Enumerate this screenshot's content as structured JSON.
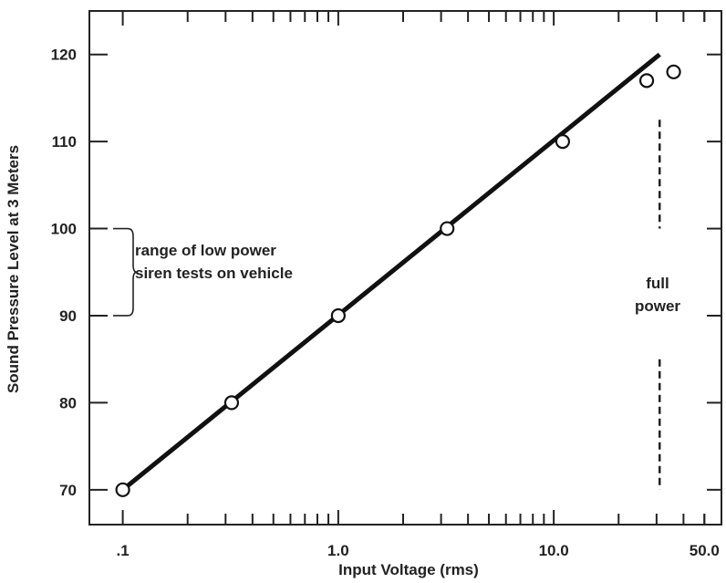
{
  "chart_data": {
    "type": "scatter",
    "xlabel": "Input Voltage (rms)",
    "ylabel": "Sound Pressure Level at 3 Meters",
    "x_scale": "log",
    "xlim": [
      0.07,
      60
    ],
    "ylim": [
      66,
      125
    ],
    "x_ticks": [
      {
        "value": 0.1,
        "label": ".1"
      },
      {
        "value": 1.0,
        "label": "1.0"
      },
      {
        "value": 10.0,
        "label": "10.0"
      },
      {
        "value": 50.0,
        "label": "50.0"
      }
    ],
    "y_ticks": [
      {
        "value": 70,
        "label": "70"
      },
      {
        "value": 80,
        "label": "80"
      },
      {
        "value": 90,
        "label": "90"
      },
      {
        "value": 100,
        "label": "100"
      },
      {
        "value": 110,
        "label": "110"
      },
      {
        "value": 120,
        "label": "120"
      }
    ],
    "points": [
      {
        "x": 0.1,
        "y": 70
      },
      {
        "x": 0.32,
        "y": 80
      },
      {
        "x": 1.0,
        "y": 90
      },
      {
        "x": 3.2,
        "y": 100
      },
      {
        "x": 11,
        "y": 110
      },
      {
        "x": 27,
        "y": 117
      },
      {
        "x": 36,
        "y": 118
      }
    ],
    "fit_line": [
      {
        "x": 0.1,
        "y": 70
      },
      {
        "x": 31,
        "y": 120
      }
    ],
    "full_power_x": 31,
    "low_power_range": [
      90,
      100
    ],
    "annotations": {
      "low_power_line1": "range of low power",
      "low_power_line2": "siren tests on vehicle",
      "full_power_line1": "full",
      "full_power_line2": "power"
    },
    "grid": false
  }
}
